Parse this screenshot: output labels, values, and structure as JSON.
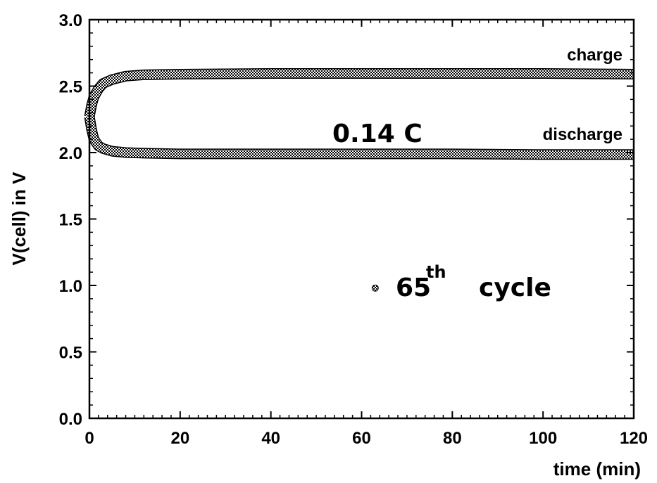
{
  "chart_data": {
    "type": "line",
    "xlabel": "time (min)",
    "ylabel": "V(cell) in V",
    "xlim": [
      0,
      120
    ],
    "ylim": [
      0.0,
      3.0
    ],
    "xticks": [
      "0",
      "20",
      "40",
      "60",
      "80",
      "100",
      "120"
    ],
    "yticks": [
      "0.0",
      "0.5",
      "1.0",
      "1.5",
      "2.0",
      "2.5",
      "3.0"
    ],
    "grid": false,
    "series": [
      {
        "name": "charge",
        "x": [
          0,
          0.5,
          1,
          2,
          3,
          5,
          8,
          12,
          20,
          40,
          60,
          80,
          100,
          120
        ],
        "y": [
          2.27,
          2.36,
          2.42,
          2.48,
          2.52,
          2.55,
          2.575,
          2.585,
          2.59,
          2.595,
          2.595,
          2.595,
          2.595,
          2.59
        ]
      },
      {
        "name": "discharge",
        "x": [
          0,
          0.5,
          1,
          2,
          3,
          5,
          8,
          12,
          20,
          40,
          60,
          80,
          100,
          120
        ],
        "y": [
          2.27,
          2.17,
          2.1,
          2.05,
          2.03,
          2.01,
          2.0,
          1.995,
          1.99,
          1.99,
          1.99,
          1.99,
          1.985,
          1.985
        ]
      }
    ],
    "annotations": {
      "charge_label": "charge",
      "discharge_label": "discharge",
      "rate_label": "0.14 C",
      "legend_number": "65",
      "legend_superscript": "th",
      "legend_text": "cycle"
    },
    "legend_marker_point": {
      "x": 63,
      "y": 0.98
    }
  }
}
